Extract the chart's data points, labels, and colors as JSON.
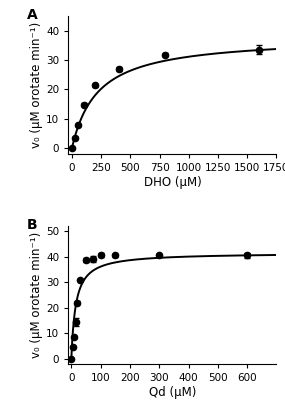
{
  "panel_A": {
    "label": "A",
    "x_data": [
      0,
      25,
      50,
      100,
      200,
      400,
      800,
      1600
    ],
    "y_data": [
      0,
      3.5,
      8.0,
      14.8,
      21.5,
      27.0,
      31.8,
      33.5
    ],
    "y_err": [
      0.2,
      0.3,
      0.4,
      0.5,
      0.5,
      0.8,
      0.5,
      1.5
    ],
    "xlabel": "DHO (μM)",
    "ylabel": "v₀ (μM orotate min⁻¹)",
    "xlim": [
      -30,
      1750
    ],
    "ylim": [
      -2,
      45
    ],
    "xticks": [
      0,
      250,
      500,
      750,
      1000,
      1250,
      1500,
      1750
    ],
    "yticks": [
      0,
      10,
      20,
      30,
      40
    ],
    "Vmax": 38.0,
    "Km": 220
  },
  "panel_B": {
    "label": "B",
    "x_data": [
      0,
      5,
      10,
      15,
      20,
      30,
      50,
      75,
      100,
      150,
      300,
      600
    ],
    "y_data": [
      0,
      4.5,
      8.5,
      14.5,
      22.0,
      31.0,
      38.5,
      39.0,
      40.5,
      40.5,
      40.5,
      40.5
    ],
    "y_err": [
      0.2,
      0.3,
      0.4,
      1.5,
      0.5,
      0.4,
      0.8,
      1.2,
      0.8,
      0.6,
      0.5,
      1.0
    ],
    "xlabel": "Qd (μM)",
    "ylabel": "v₀ (μM orotate min⁻¹)",
    "xlim": [
      -10,
      700
    ],
    "ylim": [
      -2,
      52
    ],
    "xticks": [
      0,
      100,
      200,
      300,
      400,
      500,
      600
    ],
    "yticks": [
      0,
      10,
      20,
      30,
      40,
      50
    ],
    "Vmax": 41.5,
    "Km": 15
  },
  "line_color": "#000000",
  "marker_color": "#000000",
  "background_color": "#ffffff",
  "marker_size": 4.5,
  "line_width": 1.4,
  "capsize": 2.5,
  "elinewidth": 1.0,
  "tick_fontsize": 7.5,
  "label_fontsize": 8.5,
  "panel_label_fontsize": 10
}
